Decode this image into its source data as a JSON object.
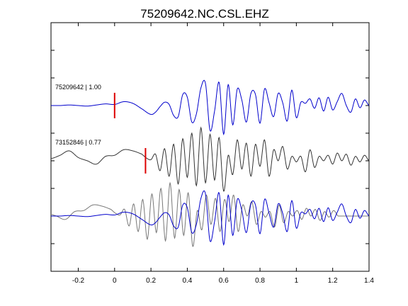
{
  "chart_data": {
    "type": "line",
    "title": "75209642.NC.CSL.EHZ",
    "xlabel": "",
    "ylabel": "",
    "xlim": [
      -0.35,
      1.4
    ],
    "ylim": [
      -4,
      0.5
    ],
    "grid": false,
    "x_ticks": [
      -0.2,
      0,
      0.2,
      0.4,
      0.6,
      0.8,
      1,
      1.2,
      1.4
    ],
    "x_tick_labels": [
      "-0.2",
      "0",
      "0.2",
      "0.4",
      "0.6",
      "0.8",
      "1",
      "1.2",
      "1.4"
    ],
    "y_ticks": [
      -3.5,
      -3,
      -2.5,
      -2,
      -1.5,
      -1,
      -0.5,
      0
    ],
    "traces": [
      {
        "label": "75209642 | 1.00",
        "color": "#0000cc",
        "offset": -1,
        "pick_time": 0.0,
        "pick_color": "#dd0000",
        "x": [
          -0.35,
          -0.3,
          -0.25,
          -0.2,
          -0.15,
          -0.1,
          -0.05,
          0.0,
          0.05,
          0.1,
          0.15,
          0.2,
          0.225,
          0.25,
          0.275,
          0.3,
          0.325,
          0.35,
          0.375,
          0.4,
          0.425,
          0.45,
          0.475,
          0.5,
          0.525,
          0.55,
          0.575,
          0.6,
          0.625,
          0.65,
          0.675,
          0.7,
          0.725,
          0.75,
          0.775,
          0.8,
          0.825,
          0.85,
          0.875,
          0.9,
          0.925,
          0.95,
          0.975,
          1.0,
          1.025,
          1.05,
          1.075,
          1.1,
          1.125,
          1.15,
          1.175,
          1.2,
          1.225,
          1.25,
          1.275,
          1.3,
          1.325,
          1.35,
          1.375,
          1.4
        ],
        "y": [
          0.0,
          0.0,
          0.01,
          0.0,
          -0.01,
          0.01,
          0.03,
          0.02,
          0.07,
          0.04,
          -0.06,
          -0.16,
          -0.12,
          -0.02,
          0.06,
          0.02,
          -0.18,
          -0.2,
          0.2,
          0.15,
          -0.3,
          -0.15,
          0.32,
          0.4,
          -0.45,
          -0.1,
          0.42,
          -0.52,
          0.38,
          -0.35,
          0.3,
          0.1,
          -0.3,
          0.22,
          0.2,
          -0.32,
          0.3,
          0.05,
          -0.2,
          0.22,
          0.05,
          -0.28,
          0.28,
          -0.22,
          0.06,
          0.04,
          0.12,
          -0.05,
          0.14,
          -0.1,
          0.15,
          -0.08,
          0.07,
          0.22,
          0.0,
          -0.12,
          0.12,
          -0.04,
          0.1,
          0.0
        ]
      },
      {
        "label": "73152846 | 0.77",
        "color": "#333333",
        "offset": -2,
        "pick_time": 0.17,
        "pick_color": "#dd0000",
        "x": [
          -0.35,
          -0.3,
          -0.25,
          -0.2,
          -0.15,
          -0.1,
          -0.05,
          0.0,
          0.05,
          0.1,
          0.15,
          0.175,
          0.2,
          0.225,
          0.25,
          0.275,
          0.3,
          0.325,
          0.35,
          0.375,
          0.4,
          0.425,
          0.45,
          0.475,
          0.5,
          0.525,
          0.55,
          0.575,
          0.6,
          0.625,
          0.65,
          0.675,
          0.7,
          0.725,
          0.75,
          0.775,
          0.8,
          0.825,
          0.85,
          0.875,
          0.9,
          0.925,
          0.95,
          0.975,
          1.0,
          1.025,
          1.05,
          1.075,
          1.1,
          1.125,
          1.15,
          1.175,
          1.2,
          1.225,
          1.25,
          1.275,
          1.3,
          1.325,
          1.35,
          1.375,
          1.4
        ],
        "y": [
          0.04,
          0.1,
          0.18,
          0.06,
          0.0,
          -0.06,
          0.08,
          0.1,
          0.2,
          0.18,
          0.12,
          0.05,
          0.02,
          0.12,
          -0.18,
          0.22,
          -0.28,
          0.3,
          -0.42,
          0.4,
          -0.3,
          0.5,
          -0.45,
          0.6,
          -0.4,
          0.48,
          -0.35,
          0.42,
          -0.55,
          0.1,
          -0.25,
          0.38,
          -0.15,
          0.32,
          -0.28,
          0.3,
          -0.1,
          0.38,
          -0.28,
          0.2,
          0.0,
          0.26,
          -0.15,
          0.08,
          -0.02,
          0.08,
          -0.2,
          0.2,
          -0.12,
          0.08,
          0.0,
          0.1,
          -0.06,
          0.14,
          0.0,
          0.12,
          -0.08,
          0.08,
          -0.02,
          0.1,
          0.0
        ]
      },
      {
        "label": "",
        "color": "#0000cc",
        "offset": -3,
        "overlay_of": 0
      },
      {
        "label": "",
        "color": "#777777",
        "offset": -3,
        "overlay_of": 1,
        "time_shift": -0.17
      }
    ]
  }
}
